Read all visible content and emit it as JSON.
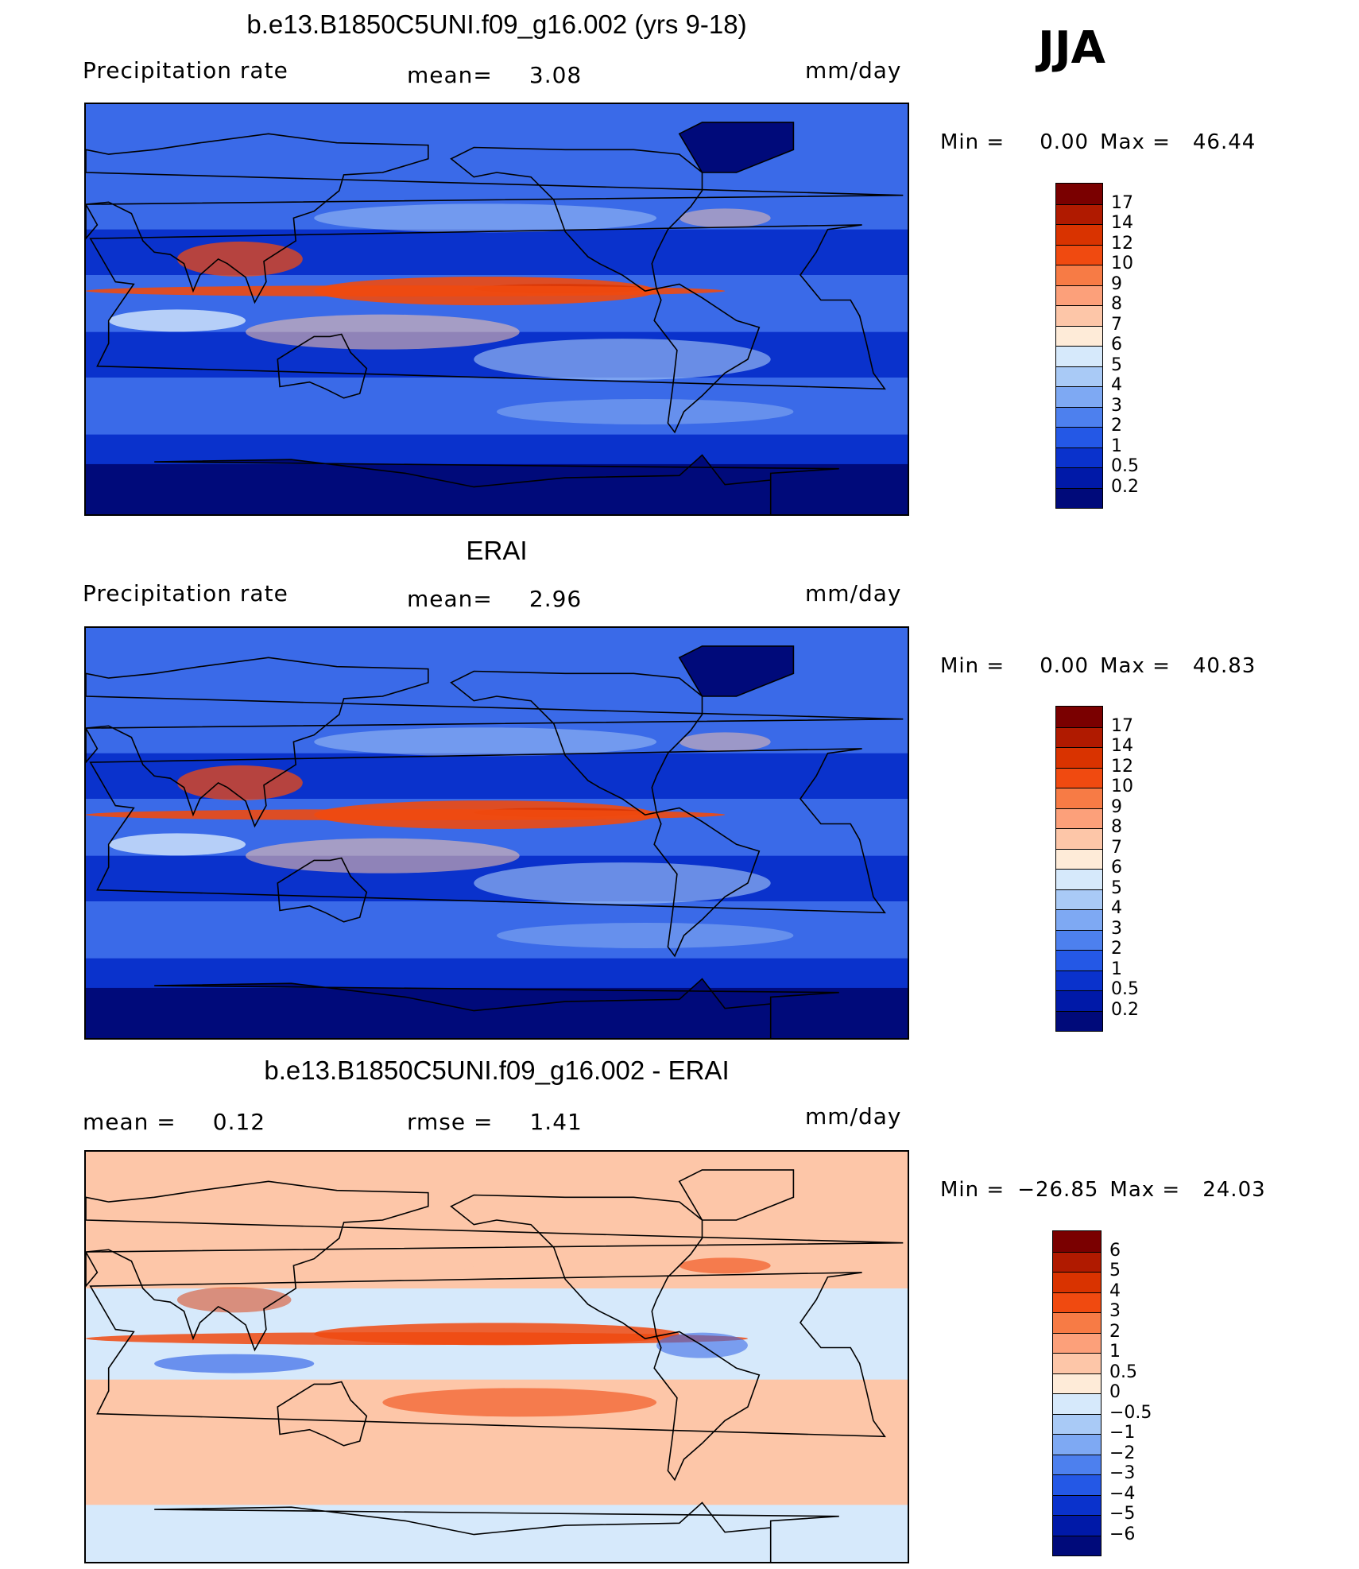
{
  "season": "JJA",
  "panels": [
    {
      "title": "b.e13.B1850C5UNI.f09_g16.002 (yrs 9-18)",
      "variable": "Precipitation rate",
      "stat_label": "mean=",
      "stat_value": "3.08",
      "units": "mm/day",
      "min_label": "Min =",
      "min_value": "0.00",
      "max_label": "Max =",
      "max_value": "46.44",
      "colorbar_labels": [
        "17",
        "14",
        "12",
        "10",
        "9",
        "8",
        "7",
        "6",
        "5",
        "4",
        "3",
        "2",
        "1",
        "0.5",
        "0.2"
      ],
      "colorbar_colors": [
        "#7a0000",
        "#b01a00",
        "#d93300",
        "#f04a10",
        "#f77b45",
        "#fca07a",
        "#fdc6a8",
        "#feebd8",
        "#d6e9fb",
        "#a9caf6",
        "#7ea9f3",
        "#4d80ee",
        "#2458e6",
        "#0a32cc",
        "#0019a8",
        "#000a7a"
      ]
    },
    {
      "title": "ERAI",
      "variable": "Precipitation rate",
      "stat_label": "mean=",
      "stat_value": "2.96",
      "units": "mm/day",
      "min_label": "Min =",
      "min_value": "0.00",
      "max_label": "Max =",
      "max_value": "40.83",
      "colorbar_labels": [
        "17",
        "14",
        "12",
        "10",
        "9",
        "8",
        "7",
        "6",
        "5",
        "4",
        "3",
        "2",
        "1",
        "0.5",
        "0.2"
      ],
      "colorbar_colors": [
        "#7a0000",
        "#b01a00",
        "#d93300",
        "#f04a10",
        "#f77b45",
        "#fca07a",
        "#fdc6a8",
        "#feebd8",
        "#d6e9fb",
        "#a9caf6",
        "#7ea9f3",
        "#4d80ee",
        "#2458e6",
        "#0a32cc",
        "#0019a8",
        "#000a7a"
      ]
    },
    {
      "title": "b.e13.B1850C5UNI.f09_g16.002 - ERAI",
      "stat_label": "mean =",
      "stat_value": "0.12",
      "stat2_label": "rmse =",
      "stat2_value": "1.41",
      "units": "mm/day",
      "min_label": "Min =",
      "min_value": "−26.85",
      "max_label": "Max =",
      "max_value": "24.03",
      "colorbar_labels": [
        "6",
        "5",
        "4",
        "3",
        "2",
        "1",
        "0.5",
        "0",
        "−0.5",
        "−1",
        "−2",
        "−3",
        "−4",
        "−5",
        "−6"
      ],
      "colorbar_colors": [
        "#7a0000",
        "#b01a00",
        "#d93300",
        "#f04a10",
        "#f77b45",
        "#fca07a",
        "#fdc6a8",
        "#feebd8",
        "#d6e9fb",
        "#a9caf6",
        "#7ea9f3",
        "#4d80ee",
        "#2458e6",
        "#0a32cc",
        "#0019a8",
        "#000a7a"
      ]
    }
  ],
  "map_colors": {
    "ocean_mid": "#3a6ae8",
    "ocean_dark": "#0a32cc",
    "deep": "#000a7a",
    "light": "#a9caf6",
    "pale": "#d6e9fb",
    "peach": "#fdc6a8",
    "orange": "#f04a10",
    "red": "#d93300",
    "darkred": "#7a0000"
  }
}
